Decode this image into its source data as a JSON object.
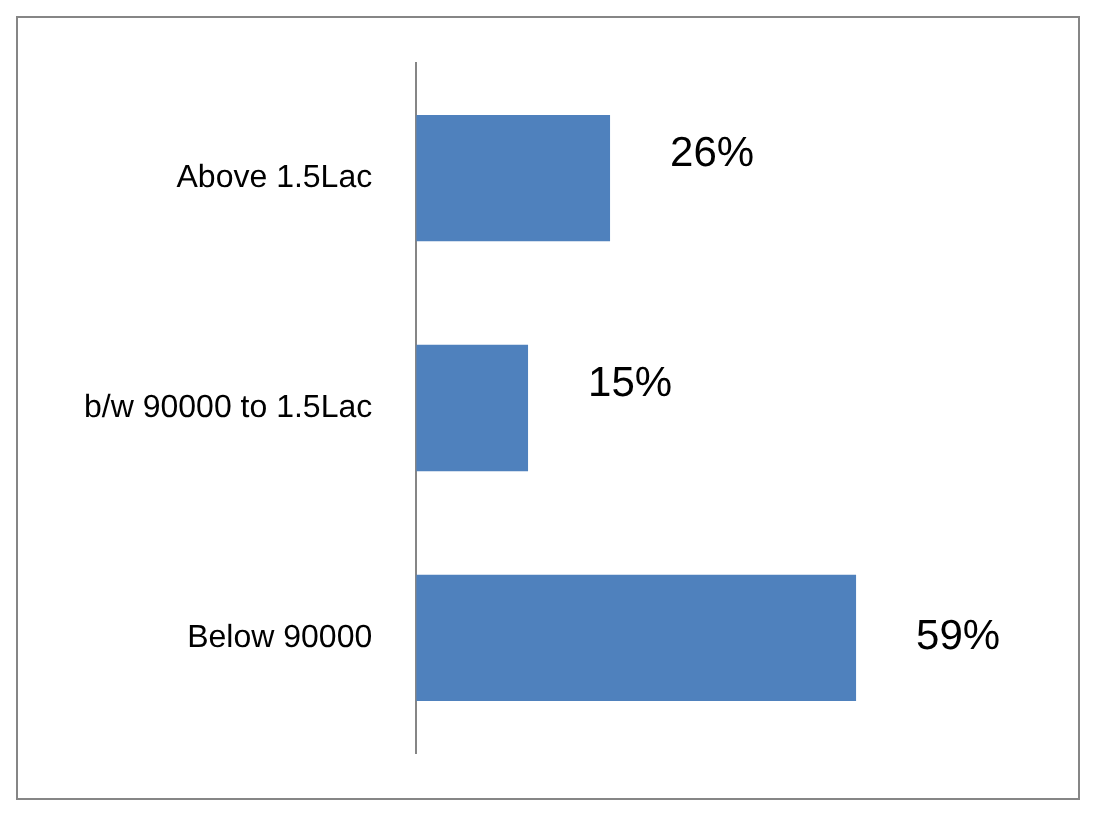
{
  "chart_data": {
    "type": "bar",
    "orientation": "horizontal",
    "categories": [
      "Above 1.5Lac",
      "b/w 90000 to 1.5Lac",
      "Below 90000"
    ],
    "values": [
      26,
      15,
      59
    ],
    "color": "#4f81bd",
    "value_labels": [
      "26%",
      "15%",
      "59%"
    ]
  }
}
